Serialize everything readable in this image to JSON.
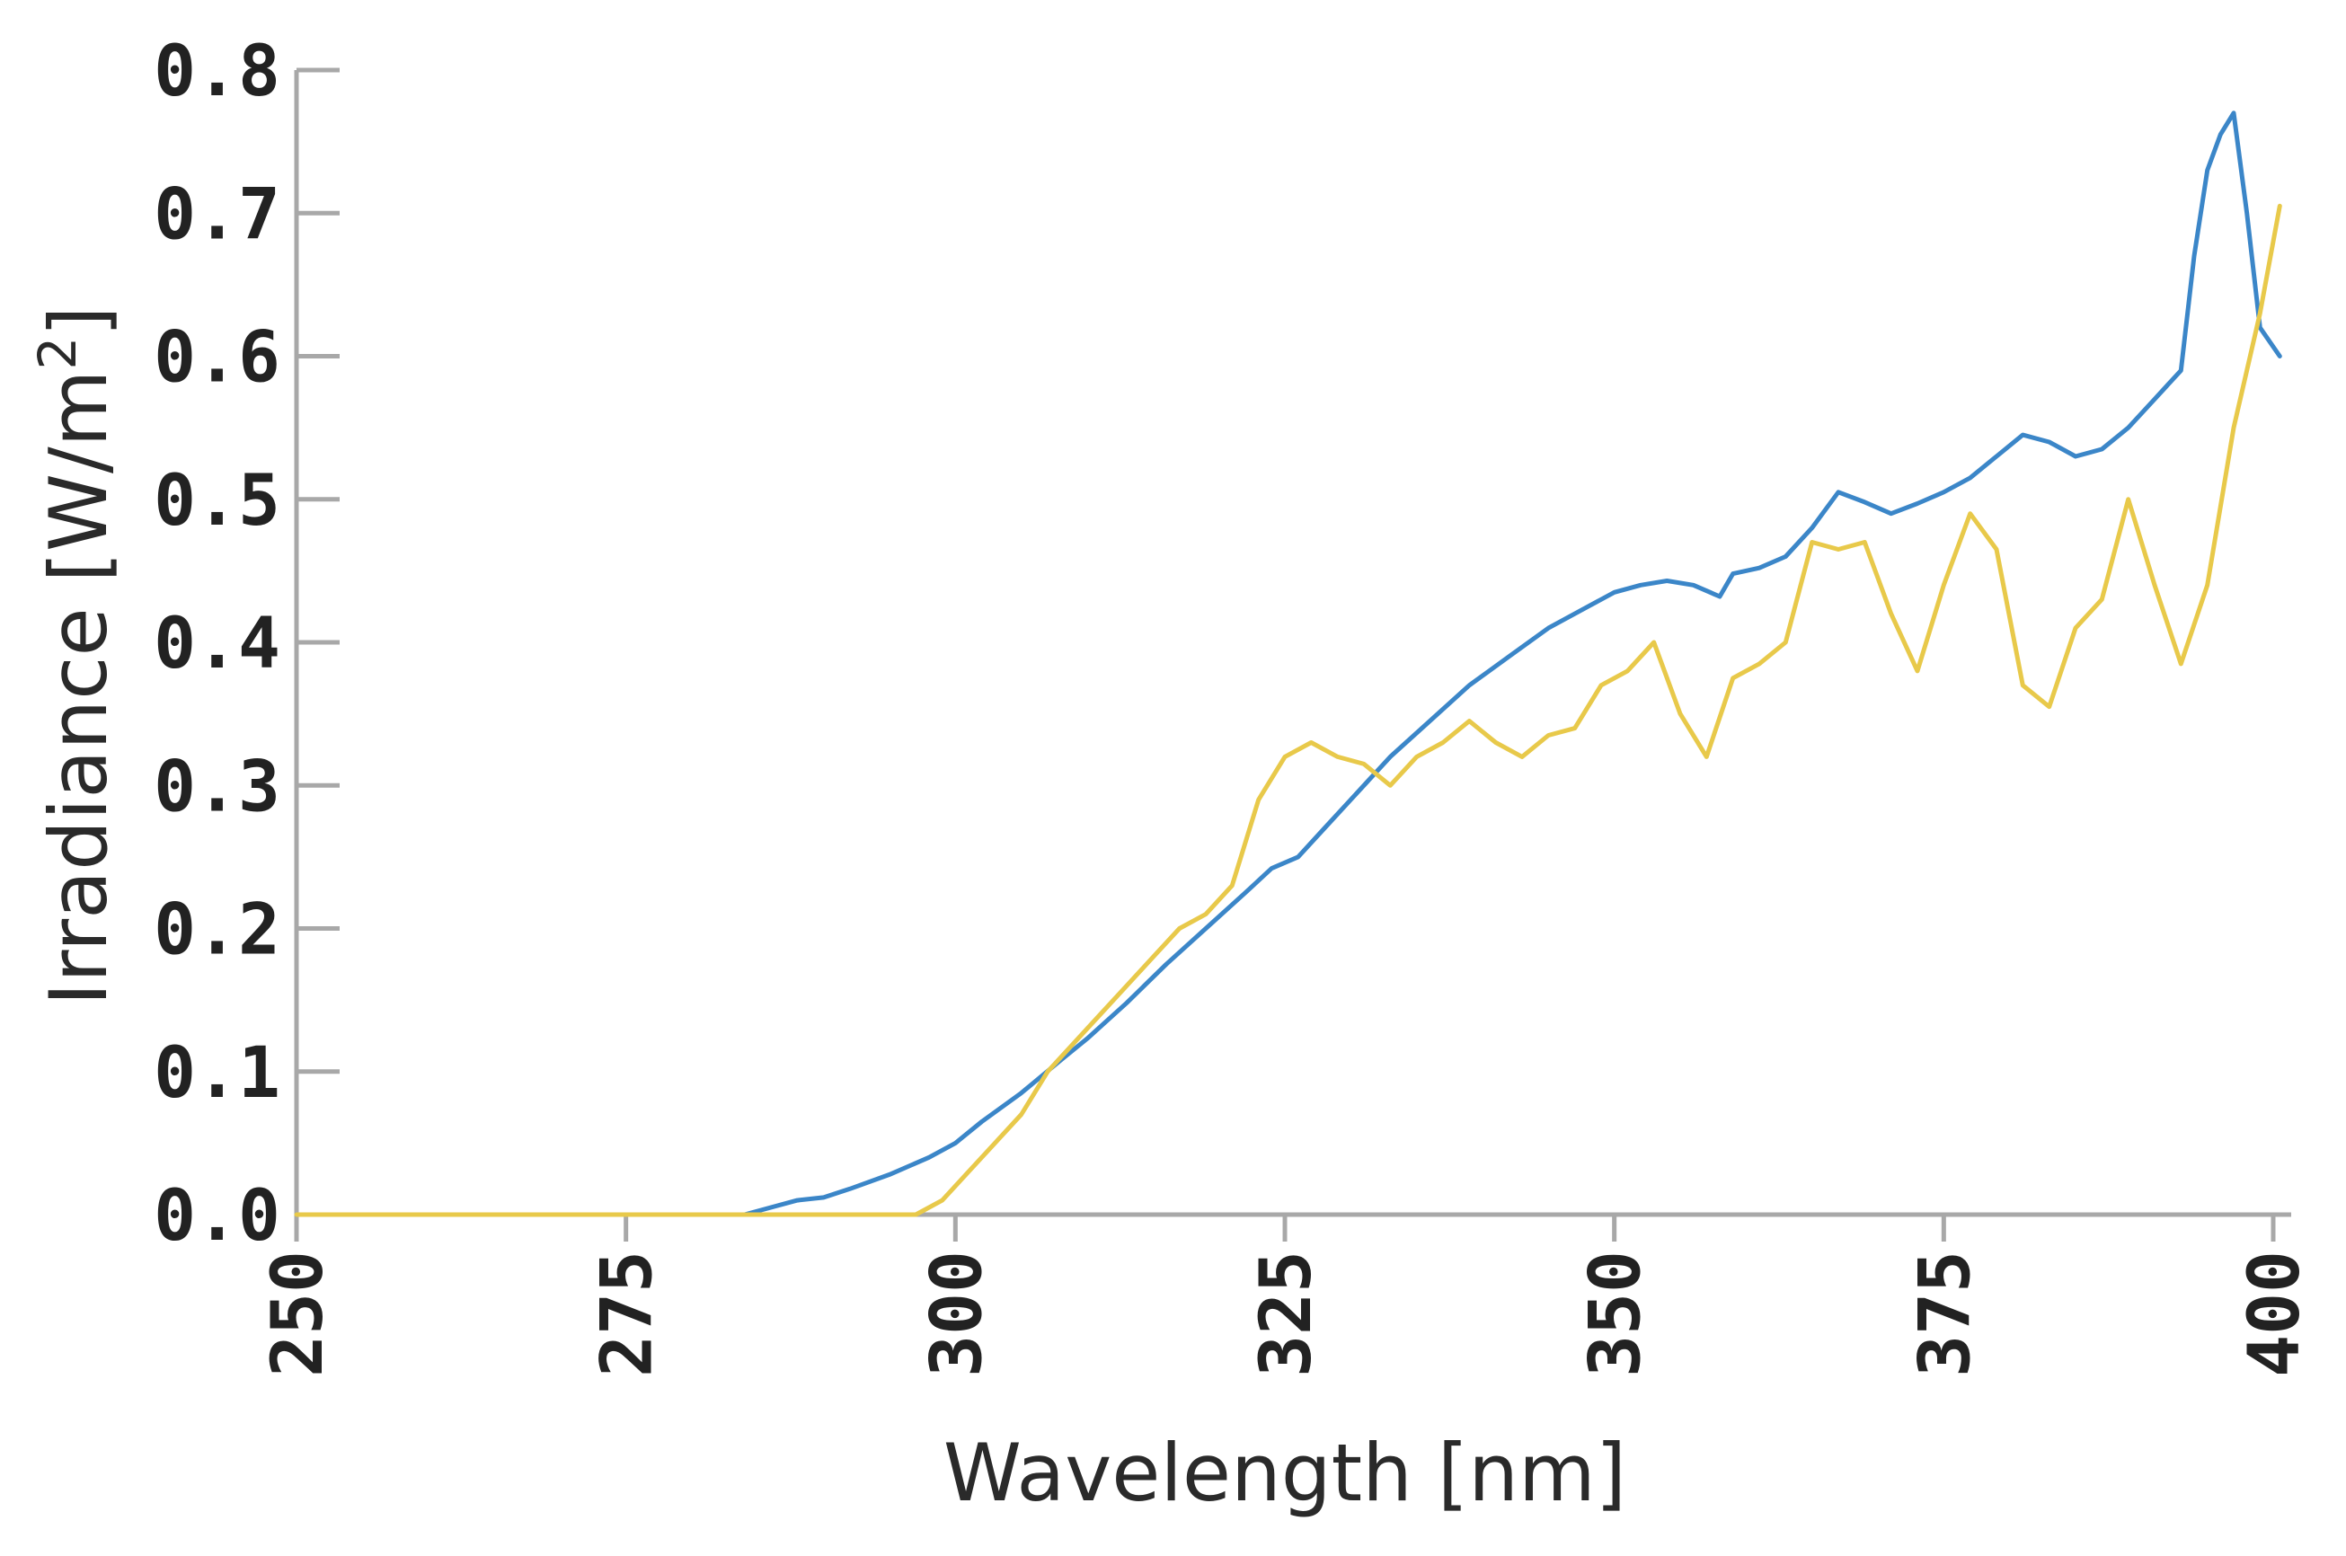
{
  "chart_data": {
    "type": "line",
    "title": "",
    "xlabel": "Wavelength [nm]",
    "ylabel": "Irradiance [W/m²]",
    "ylabel_parts": {
      "main": "Irradiance [W/m",
      "sup": "2",
      "close": "]"
    },
    "xlim": [
      250,
      400
    ],
    "ylim": [
      0.0,
      0.8
    ],
    "xticks": [
      "250",
      "275",
      "300",
      "325",
      "350",
      "375",
      "400"
    ],
    "yticks": [
      "0.0",
      "0.1",
      "0.2",
      "0.3",
      "0.4",
      "0.5",
      "0.6",
      "0.7",
      "0.8"
    ],
    "grid": false,
    "legend": "none",
    "series": [
      {
        "color": "#3b86c8",
        "x": [
          250,
          284,
          286,
          288,
          290,
          292,
          295,
          298,
          300,
          302,
          305,
          308,
          310,
          313,
          316,
          319,
          322,
          324,
          326,
          328,
          330,
          333,
          336,
          339,
          342,
          345,
          348,
          350,
          352,
          354,
          356,
          358,
          359,
          361,
          363,
          365,
          367,
          369,
          371,
          373,
          375,
          377,
          379,
          381,
          383,
          385,
          387,
          389,
          391,
          393,
          394,
          395,
          396,
          397,
          398,
          399,
          400.5
        ],
        "y": [
          0.0,
          0.0,
          0.005,
          0.01,
          0.012,
          0.018,
          0.028,
          0.04,
          0.05,
          0.065,
          0.085,
          0.108,
          0.123,
          0.148,
          0.175,
          0.2,
          0.225,
          0.242,
          0.25,
          0.27,
          0.29,
          0.32,
          0.345,
          0.37,
          0.39,
          0.41,
          0.425,
          0.435,
          0.44,
          0.443,
          0.44,
          0.432,
          0.448,
          0.452,
          0.46,
          0.48,
          0.505,
          0.498,
          0.49,
          0.497,
          0.505,
          0.515,
          0.53,
          0.545,
          0.54,
          0.53,
          0.535,
          0.55,
          0.57,
          0.59,
          0.67,
          0.73,
          0.755,
          0.77,
          0.7,
          0.62,
          0.6
        ]
      },
      {
        "color": "#e8c94a",
        "x": [
          250,
          297,
          299,
          301,
          303,
          305,
          307,
          309,
          311,
          313,
          315,
          317,
          319,
          321,
          323,
          325,
          327,
          329,
          331,
          333,
          335,
          337,
          339,
          341,
          343,
          345,
          347,
          349,
          351,
          353,
          355,
          357,
          359,
          361,
          363,
          365,
          367,
          369,
          371,
          373,
          375,
          377,
          379,
          381,
          383,
          385,
          387,
          389,
          391,
          393,
          395,
          397,
          399,
          400.5
        ],
        "y": [
          0.0,
          0.0,
          0.01,
          0.03,
          0.05,
          0.07,
          0.1,
          0.12,
          0.14,
          0.16,
          0.18,
          0.2,
          0.21,
          0.23,
          0.29,
          0.32,
          0.33,
          0.32,
          0.315,
          0.3,
          0.32,
          0.33,
          0.345,
          0.33,
          0.32,
          0.335,
          0.34,
          0.37,
          0.38,
          0.4,
          0.35,
          0.32,
          0.375,
          0.385,
          0.4,
          0.47,
          0.465,
          0.47,
          0.42,
          0.38,
          0.44,
          0.49,
          0.465,
          0.37,
          0.355,
          0.41,
          0.43,
          0.5,
          0.44,
          0.385,
          0.44,
          0.55,
          0.63,
          0.705
        ]
      }
    ]
  }
}
